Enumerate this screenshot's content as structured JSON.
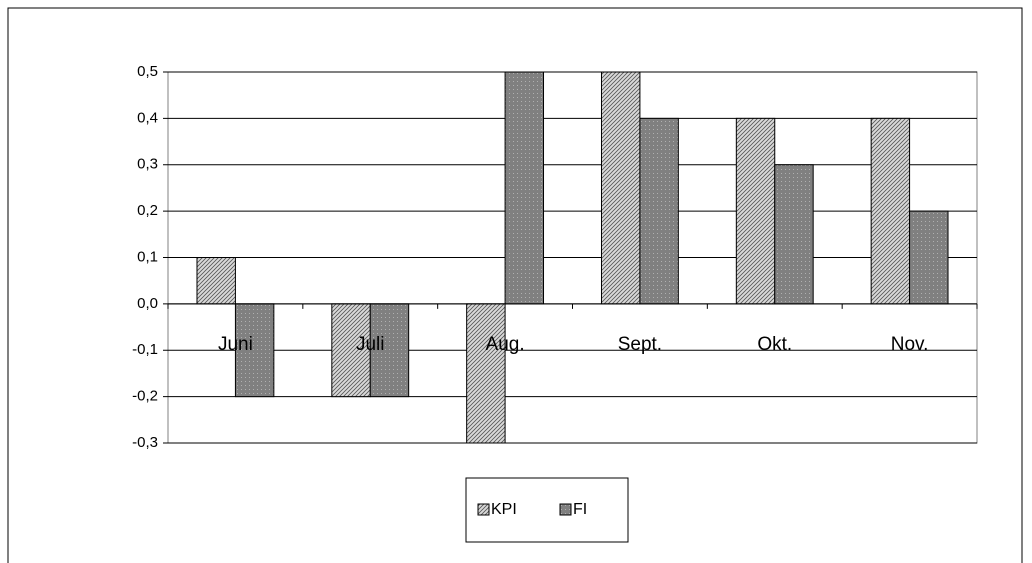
{
  "chart_data": {
    "type": "bar",
    "categories": [
      "Juni",
      "Juli",
      "Aug.",
      "Sept.",
      "Okt.",
      "Nov."
    ],
    "series": [
      {
        "name": "KPI",
        "color": "#d9d9d9",
        "values": [
          0.1,
          -0.2,
          -0.3,
          0.5,
          0.4,
          0.4
        ]
      },
      {
        "name": "FI",
        "color": "#808080",
        "values": [
          -0.2,
          -0.2,
          0.5,
          0.4,
          0.3,
          0.2
        ]
      }
    ],
    "ylim": [
      -0.3,
      0.5
    ],
    "yticks": [
      {
        "value": -0.3,
        "label": "-0,3"
      },
      {
        "value": -0.2,
        "label": "-0,2"
      },
      {
        "value": -0.1,
        "label": "-0,1"
      },
      {
        "value": 0,
        "label": "0,0"
      },
      {
        "value": 0.1,
        "label": "0,1"
      },
      {
        "value": 0.2,
        "label": "0,2"
      },
      {
        "value": 0.3,
        "label": "0,3"
      },
      {
        "value": 0.4,
        "label": "0,4"
      },
      {
        "value": 0.5,
        "label": "0,5"
      }
    ],
    "grid": true,
    "legend": "bottom"
  }
}
